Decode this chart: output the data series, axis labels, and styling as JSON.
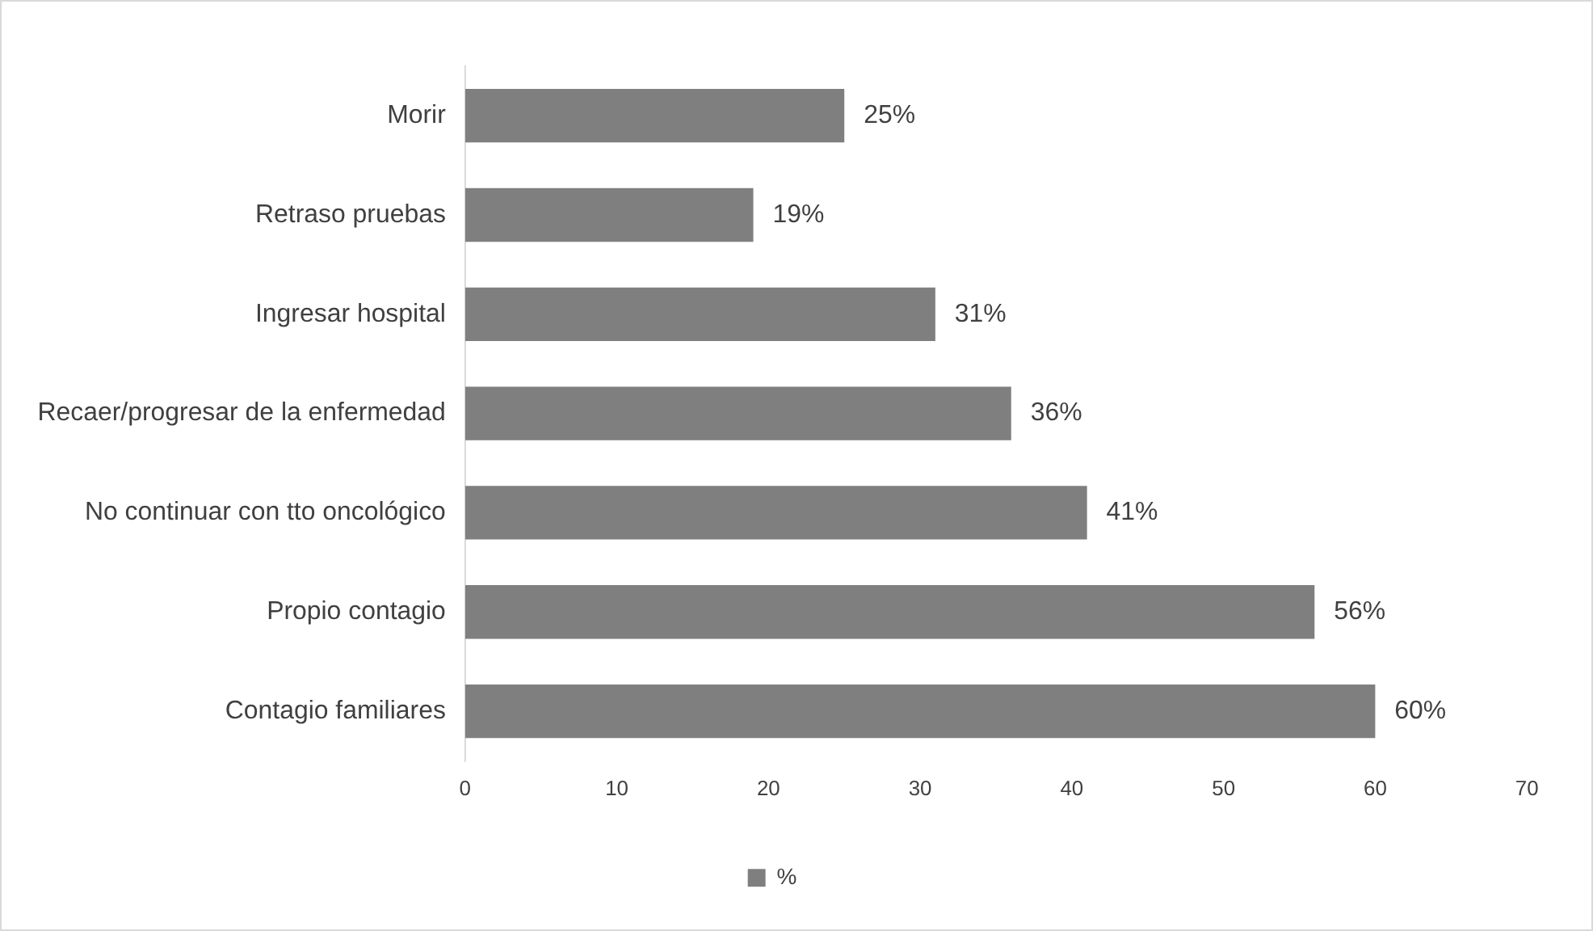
{
  "chart_data": {
    "type": "bar",
    "orientation": "horizontal",
    "categories": [
      "Morir",
      "Retraso pruebas",
      "Ingresar hospital",
      "Recaer/progresar de la enfermedad",
      "No continuar con tto oncológico",
      "Propio contagio",
      "Contagio familiares"
    ],
    "series": [
      {
        "name": "%",
        "color": "#7f7f7f",
        "values": [
          25,
          19,
          31,
          36,
          41,
          56,
          60
        ],
        "value_labels": [
          "25%",
          "19%",
          "31%",
          "36%",
          "41%",
          "56%",
          "60%"
        ]
      }
    ],
    "xlim": [
      0,
      70
    ],
    "xticks": [
      0,
      10,
      20,
      30,
      40,
      50,
      60,
      70
    ],
    "grid": false,
    "legend": "bottom"
  }
}
